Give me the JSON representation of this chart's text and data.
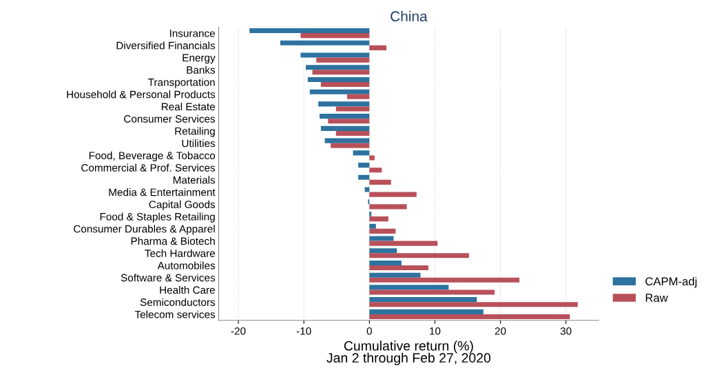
{
  "chart_data": {
    "type": "bar",
    "orientation": "horizontal",
    "title": "China",
    "xlabel": "Cumulative return (%)\nJan 2 through Feb 27, 2020",
    "categories": [
      "Insurance",
      "Diversified Financials",
      "Energy",
      "Banks",
      "Transportation",
      "Household & Personal Products",
      "Real Estate",
      "Consumer Services",
      "Retailing",
      "Utilities",
      "Food, Beverage & Tobacco",
      "Commercial & Prof. Services",
      "Materials",
      "Media & Entertainment",
      "Capital Goods",
      "Food & Staples Retailing",
      "Consumer Durables & Apparel",
      "Pharma & Biotech",
      "Tech Hardware",
      "Automobiles",
      "Software & Services",
      "Health Care",
      "Semiconductors",
      "Telecom services"
    ],
    "series": [
      {
        "name": "CAPM-adj",
        "color": "#2e72a0",
        "values": [
          -18.3,
          -13.6,
          -10.5,
          -9.7,
          -9.4,
          -9.1,
          -7.8,
          -7.6,
          -7.4,
          -6.8,
          -2.5,
          -1.7,
          -1.7,
          -0.7,
          -0.2,
          0.3,
          1.0,
          3.7,
          4.2,
          4.9,
          7.8,
          12.1,
          16.4,
          17.4
        ]
      },
      {
        "name": "Raw",
        "color": "#b8505a",
        "values": [
          -10.5,
          2.6,
          -8.1,
          -8.7,
          -7.4,
          -3.4,
          -5.1,
          -6.3,
          -5.1,
          -5.9,
          0.8,
          1.9,
          3.3,
          7.2,
          5.7,
          2.9,
          4.0,
          10.4,
          15.2,
          9.0,
          22.9,
          19.1,
          31.8,
          30.6
        ]
      }
    ],
    "xlim": [
      -23,
      35
    ],
    "xticks": [
      {
        "value": -20,
        "label": "-20"
      },
      {
        "value": -10,
        "label": "-10"
      },
      0,
      10,
      20,
      30
    ],
    "grid": "x",
    "legend": "bottom right"
  }
}
